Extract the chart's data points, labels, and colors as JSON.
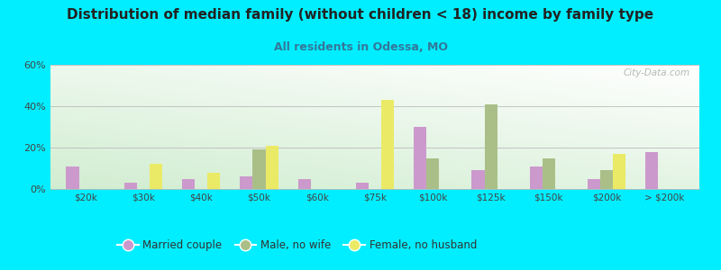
{
  "title": "Distribution of median family (without children < 18) income by family type",
  "subtitle": "All residents in Odessa, MO",
  "categories": [
    "$20k",
    "$30k",
    "$40k",
    "$50k",
    "$60k",
    "$75k",
    "$100k",
    "$125k",
    "$150k",
    "$200k",
    "> $200k"
  ],
  "married_couple": [
    11,
    3,
    5,
    6,
    5,
    3,
    30,
    9,
    11,
    5,
    18
  ],
  "male_no_wife": [
    0,
    0,
    0,
    19,
    0,
    0,
    15,
    41,
    15,
    9,
    0
  ],
  "female_no_husband": [
    0,
    12,
    8,
    21,
    0,
    43,
    0,
    0,
    0,
    17,
    0
  ],
  "married_color": "#cc99cc",
  "male_color": "#aabf88",
  "female_color": "#eaea66",
  "bg_outer": "#00eeff",
  "title_color": "#222222",
  "subtitle_color": "#337799",
  "ylim": [
    0,
    60
  ],
  "yticks": [
    0,
    20,
    40,
    60
  ],
  "ytick_labels": [
    "0%",
    "20%",
    "40%",
    "60%"
  ],
  "legend_labels": [
    "Married couple",
    "Male, no wife",
    "Female, no husband"
  ],
  "bar_width": 0.22,
  "watermark": "City-Data.com"
}
